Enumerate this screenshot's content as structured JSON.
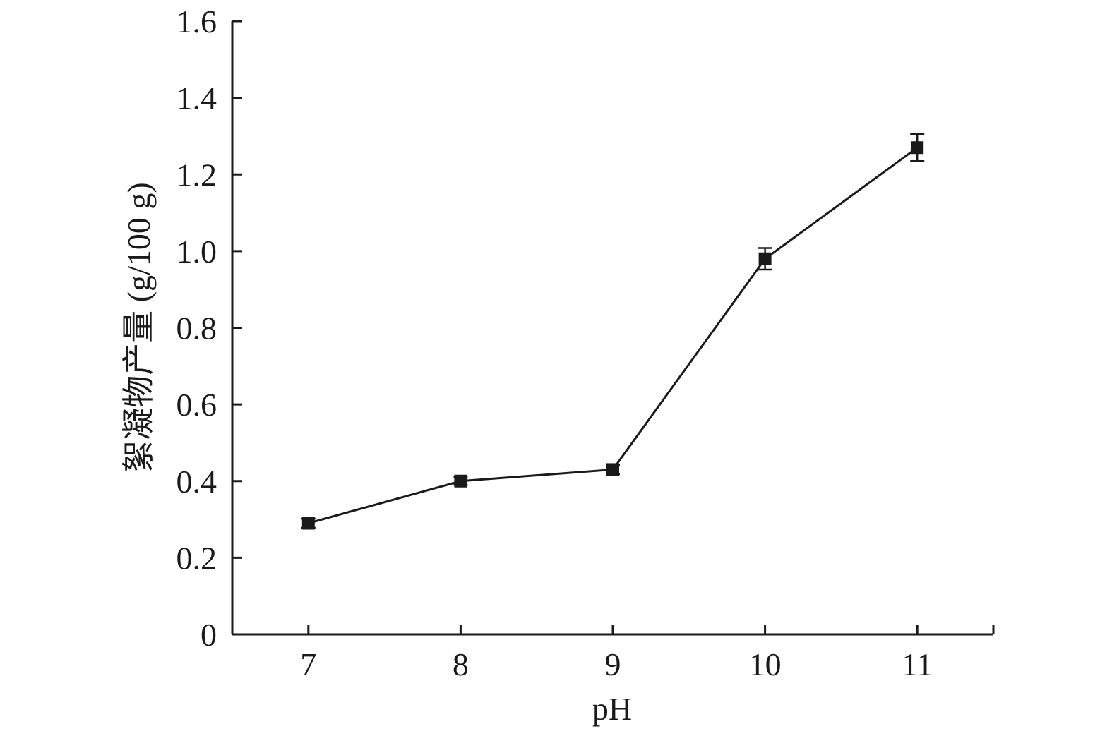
{
  "chart_data": {
    "type": "line",
    "title": "",
    "xlabel": "pH",
    "ylabel": "絮凝物产量 (g/100 g)",
    "x": [
      7,
      8,
      9,
      10,
      11
    ],
    "series": [
      {
        "values": [
          0.29,
          0.4,
          0.43,
          0.98,
          1.27
        ],
        "errors": [
          0.012,
          0.01,
          0.012,
          0.028,
          0.035
        ]
      }
    ],
    "xlim": [
      6.5,
      11.5
    ],
    "ylim": [
      0,
      1.6
    ],
    "xticks": [
      "7",
      "8",
      "9",
      "10",
      "11"
    ],
    "yticks": [
      "0",
      "0.2",
      "0.4",
      "0.6",
      "0.8",
      "1.0",
      "1.2",
      "1.4",
      "1.6"
    ],
    "yticks_values": [
      0,
      0.2,
      0.4,
      0.6,
      0.8,
      1.0,
      1.2,
      1.4,
      1.6
    ],
    "grid": false,
    "legend": "none",
    "marker": "square",
    "line_color": "#1a1a1a"
  }
}
